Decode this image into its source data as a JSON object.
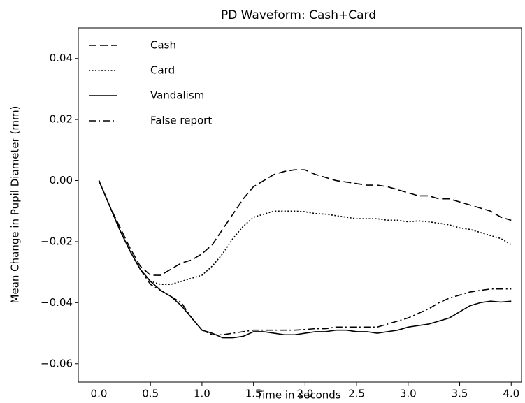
{
  "chart_data": {
    "type": "line",
    "title": "PD Waveform: Cash+Card",
    "xlabel": "Time in seconds",
    "ylabel": "Mean Change in Pupil Diameter (mm)",
    "x": [
      0.0,
      0.1,
      0.2,
      0.3,
      0.4,
      0.5,
      0.6,
      0.7,
      0.8,
      0.9,
      1.0,
      1.1,
      1.2,
      1.3,
      1.4,
      1.5,
      1.6,
      1.7,
      1.8,
      1.9,
      2.0,
      2.1,
      2.2,
      2.3,
      2.4,
      2.5,
      2.6,
      2.7,
      2.8,
      2.9,
      3.0,
      3.1,
      3.2,
      3.3,
      3.4,
      3.5,
      3.6,
      3.7,
      3.8,
      3.9,
      4.0
    ],
    "series": [
      {
        "name": "Cash",
        "color": "#000000",
        "linestyle": "dashed",
        "values": [
          0,
          -0.008,
          -0.015,
          -0.022,
          -0.028,
          -0.031,
          -0.031,
          -0.029,
          -0.027,
          -0.026,
          -0.024,
          -0.021,
          -0.016,
          -0.011,
          -0.006,
          -0.002,
          0.0,
          0.002,
          0.003,
          0.0035,
          0.0035,
          0.002,
          0.001,
          0.0,
          -0.0005,
          -0.001,
          -0.0015,
          -0.0015,
          -0.002,
          -0.003,
          -0.004,
          -0.005,
          -0.005,
          -0.006,
          -0.006,
          -0.007,
          -0.008,
          -0.009,
          -0.01,
          -0.012,
          -0.013
        ]
      },
      {
        "name": "Card",
        "color": "#000000",
        "linestyle": "dotted",
        "values": [
          0,
          -0.008,
          -0.016,
          -0.023,
          -0.029,
          -0.033,
          -0.034,
          -0.034,
          -0.033,
          -0.032,
          -0.031,
          -0.028,
          -0.024,
          -0.019,
          -0.015,
          -0.012,
          -0.011,
          -0.01,
          -0.01,
          -0.01,
          -0.0102,
          -0.0108,
          -0.011,
          -0.0115,
          -0.012,
          -0.0125,
          -0.0125,
          -0.0125,
          -0.013,
          -0.013,
          -0.0135,
          -0.0132,
          -0.0135,
          -0.014,
          -0.0145,
          -0.0155,
          -0.016,
          -0.017,
          -0.018,
          -0.019,
          -0.021
        ]
      },
      {
        "name": "Vandalism",
        "color": "#000000",
        "linestyle": "solid",
        "values": [
          0,
          -0.008,
          -0.016,
          -0.023,
          -0.029,
          -0.033,
          -0.036,
          -0.038,
          -0.041,
          -0.045,
          -0.049,
          -0.05,
          -0.0515,
          -0.0515,
          -0.051,
          -0.0495,
          -0.0495,
          -0.05,
          -0.0505,
          -0.0505,
          -0.05,
          -0.0495,
          -0.0495,
          -0.049,
          -0.049,
          -0.0495,
          -0.0495,
          -0.05,
          -0.0495,
          -0.049,
          -0.048,
          -0.0475,
          -0.047,
          -0.046,
          -0.045,
          -0.043,
          -0.041,
          -0.04,
          -0.0395,
          -0.0398,
          -0.0395
        ]
      },
      {
        "name": "False report",
        "color": "#000000",
        "linestyle": "dashdot",
        "values": [
          0,
          -0.008,
          -0.016,
          -0.023,
          -0.029,
          -0.034,
          -0.036,
          -0.038,
          -0.04,
          -0.045,
          -0.049,
          -0.0505,
          -0.0505,
          -0.05,
          -0.0495,
          -0.049,
          -0.049,
          -0.049,
          -0.049,
          -0.049,
          -0.0488,
          -0.0485,
          -0.0485,
          -0.048,
          -0.048,
          -0.048,
          -0.048,
          -0.048,
          -0.047,
          -0.046,
          -0.045,
          -0.0435,
          -0.042,
          -0.04,
          -0.0385,
          -0.0375,
          -0.0365,
          -0.036,
          -0.0355,
          -0.0355,
          -0.0355
        ]
      }
    ],
    "xlim": [
      -0.2,
      4.1
    ],
    "xticks": [
      {
        "value": 0,
        "label": "0.0"
      },
      0.5,
      {
        "value": 1,
        "label": "1.0"
      },
      1.5,
      {
        "value": 2,
        "label": "2.0"
      },
      2.5,
      {
        "value": 3,
        "label": "3.0"
      },
      3.5,
      {
        "value": 4,
        "label": "4.0"
      }
    ],
    "ylim": [
      -0.066,
      0.05
    ],
    "yticks": [
      {
        "value": -0.06,
        "label": "−0.06"
      },
      {
        "value": -0.04,
        "label": "−0.04"
      },
      {
        "value": -0.02,
        "label": "−0.02"
      },
      {
        "value": 0,
        "label": "0.00"
      },
      0.02,
      0.04
    ],
    "legend": "upper left",
    "grid": false
  }
}
